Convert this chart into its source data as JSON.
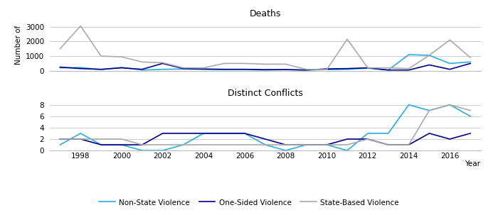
{
  "years": [
    1997,
    1998,
    1999,
    2000,
    2001,
    2002,
    2003,
    2004,
    2005,
    2006,
    2007,
    2008,
    2009,
    2010,
    2011,
    2012,
    2013,
    2014,
    2015,
    2016,
    2017
  ],
  "deaths_nonstate": [
    200,
    220,
    80,
    230,
    50,
    100,
    120,
    100,
    80,
    80,
    50,
    80,
    50,
    80,
    100,
    180,
    50,
    1100,
    1050,
    500,
    600
  ],
  "deaths_onesided": [
    250,
    150,
    100,
    200,
    100,
    500,
    150,
    120,
    100,
    100,
    80,
    80,
    50,
    130,
    150,
    200,
    50,
    50,
    400,
    100,
    500
  ],
  "deaths_statebased": [
    1500,
    3050,
    1000,
    950,
    600,
    550,
    200,
    200,
    500,
    500,
    450,
    450,
    100,
    80,
    2150,
    200,
    200,
    150,
    1050,
    2100,
    900
  ],
  "conflicts_nonstate": [
    1,
    3,
    1,
    1,
    0,
    0,
    1,
    3,
    3,
    3,
    1,
    0,
    1,
    1,
    0,
    3,
    3,
    8,
    7,
    8,
    6
  ],
  "conflicts_onesided": [
    2,
    2,
    1,
    1,
    1,
    3,
    3,
    3,
    3,
    3,
    2,
    1,
    1,
    1,
    2,
    2,
    1,
    1,
    3,
    2,
    3
  ],
  "conflicts_statebased": [
    2,
    2,
    2,
    2,
    1,
    1,
    1,
    1,
    1,
    1,
    1,
    1,
    1,
    1,
    1,
    2,
    1,
    1,
    7,
    8,
    7
  ],
  "color_nonstate": "#29ABE2",
  "color_onesided": "#00008B",
  "color_statebased": "#AAAAAA",
  "title_top": "Deaths",
  "title_bottom": "Distinct Conflicts",
  "ylabel": "Number of",
  "xlabel": "Year",
  "legend_nonstate": "Non-State Violence",
  "legend_onesided": "One-Sided Violence",
  "legend_statebased": "State-Based Violence",
  "deaths_ylim": [
    0,
    3500
  ],
  "conflicts_ylim": [
    0,
    9
  ],
  "deaths_yticks": [
    0,
    1000,
    2000,
    3000
  ],
  "conflicts_yticks": [
    0,
    2,
    4,
    6,
    8
  ],
  "xticks": [
    1998,
    2000,
    2002,
    2004,
    2006,
    2008,
    2010,
    2012,
    2014,
    2016
  ],
  "background_color": "#ffffff",
  "grid_color": "#cccccc",
  "line_width": 1.2
}
